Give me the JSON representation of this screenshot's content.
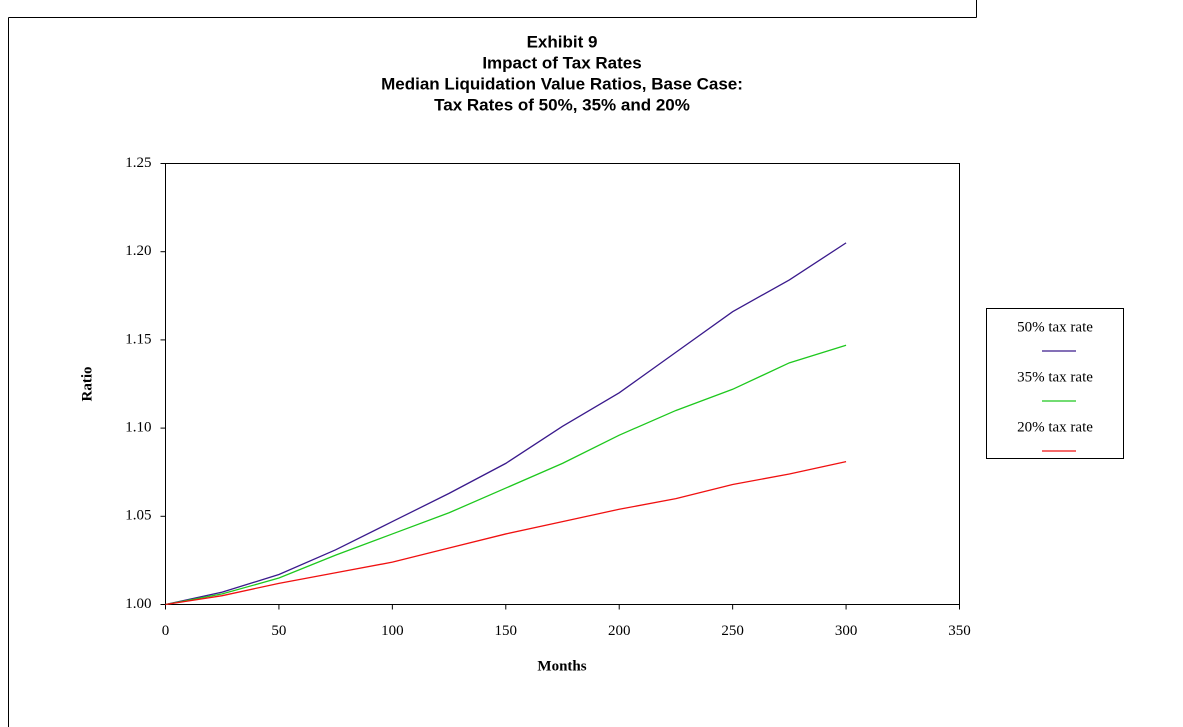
{
  "chart_data": {
    "type": "line",
    "title": [
      "Exhibit 9",
      "Impact of Tax Rates",
      "Median Liquidation Value Ratios, Base Case:",
      "Tax Rates of 50%, 35% and 20%"
    ],
    "x_label": "Months",
    "y_label": "Ratio",
    "x": [
      0,
      25,
      50,
      75,
      100,
      125,
      150,
      175,
      200,
      225,
      250,
      275,
      300
    ],
    "series": [
      {
        "name": "50% tax rate",
        "color": "#3a1a8c",
        "values": [
          1.0,
          1.007,
          1.017,
          1.031,
          1.047,
          1.063,
          1.08,
          1.101,
          1.12,
          1.143,
          1.166,
          1.184,
          1.205
        ]
      },
      {
        "name": "35% tax rate",
        "color": "#1ec81e",
        "values": [
          1.0,
          1.006,
          1.015,
          1.028,
          1.04,
          1.052,
          1.066,
          1.08,
          1.096,
          1.11,
          1.122,
          1.137,
          1.147
        ]
      },
      {
        "name": "20% tax rate",
        "color": "#f01010",
        "values": [
          1.0,
          1.005,
          1.012,
          1.018,
          1.024,
          1.032,
          1.04,
          1.047,
          1.054,
          1.06,
          1.068,
          1.074,
          1.081
        ]
      }
    ],
    "xlim": [
      0,
      350
    ],
    "xticks": [
      0,
      50,
      100,
      150,
      200,
      250,
      300,
      350
    ],
    "ylim": [
      1.0,
      1.25
    ],
    "yticks": [
      {
        "value": 1.0,
        "label": "1.00"
      },
      {
        "value": 1.05,
        "label": "1.05"
      },
      {
        "value": 1.1,
        "label": "1.10"
      },
      {
        "value": 1.15,
        "label": "1.15"
      },
      {
        "value": 1.2,
        "label": "1.20"
      },
      {
        "value": 1.25,
        "label": "1.25"
      }
    ],
    "grid": false,
    "legend": "right"
  }
}
